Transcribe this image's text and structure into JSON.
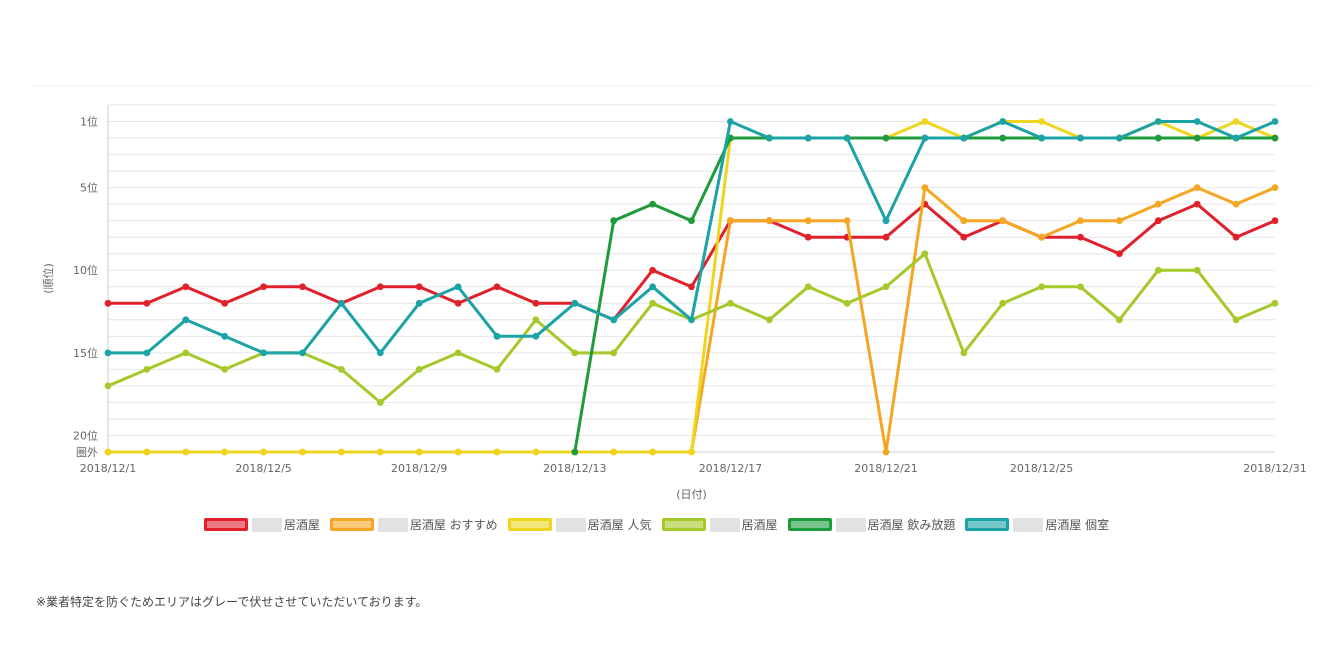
{
  "chart_data": {
    "type": "line",
    "x": [
      "2018/12/1",
      "2018/12/2",
      "2018/12/3",
      "2018/12/4",
      "2018/12/5",
      "2018/12/6",
      "2018/12/7",
      "2018/12/8",
      "2018/12/9",
      "2018/12/10",
      "2018/12/11",
      "2018/12/12",
      "2018/12/13",
      "2018/12/14",
      "2018/12/15",
      "2018/12/16",
      "2018/12/17",
      "2018/12/18",
      "2018/12/19",
      "2018/12/20",
      "2018/12/21",
      "2018/12/22",
      "2018/12/23",
      "2018/12/24",
      "2018/12/25",
      "2018/12/26",
      "2018/12/27",
      "2018/12/28",
      "2018/12/29",
      "2018/12/30",
      "2018/12/31"
    ],
    "x_tick_labels": [
      "2018/12/1",
      "2018/12/5",
      "2018/12/9",
      "2018/12/13",
      "2018/12/17",
      "2018/12/21",
      "2018/12/25",
      "2018/12/31"
    ],
    "y_tick_labels": [
      {
        "value": 1,
        "label": "1位"
      },
      {
        "value": 5,
        "label": "5位"
      },
      {
        "value": 10,
        "label": "10位"
      },
      {
        "value": 15,
        "label": "15位"
      },
      {
        "value": 20,
        "label": "20位"
      },
      {
        "value": 21,
        "label": "圏外"
      }
    ],
    "ylim": [
      21,
      0
    ],
    "ylabel": "(順位)",
    "xlabel": "(日付)",
    "grid": true,
    "legend_position": "bottom",
    "series": [
      {
        "name": "居酒屋",
        "color": "#e0212b",
        "values": [
          12,
          12,
          11,
          12,
          11,
          11,
          12,
          11,
          11,
          12,
          11,
          12,
          12,
          13,
          10,
          11,
          7,
          7,
          8,
          8,
          8,
          6,
          8,
          7,
          8,
          8,
          9,
          7,
          6,
          8,
          7
        ]
      },
      {
        "name": "居酒屋 おすすめ",
        "color": "#f5a623",
        "values": [
          21,
          21,
          21,
          21,
          21,
          21,
          21,
          21,
          21,
          21,
          21,
          21,
          21,
          21,
          21,
          21,
          7,
          7,
          7,
          7,
          21,
          5,
          7,
          7,
          8,
          7,
          7,
          6,
          5,
          6,
          5
        ]
      },
      {
        "name": "居酒屋 人気",
        "color": "#eed51f",
        "values": [
          21,
          21,
          21,
          21,
          21,
          21,
          21,
          21,
          21,
          21,
          21,
          21,
          21,
          21,
          21,
          21,
          2,
          2,
          2,
          2,
          2,
          1,
          2,
          1,
          1,
          2,
          2,
          1,
          2,
          1,
          2
        ]
      },
      {
        "name": "居酒屋",
        "color": "#a5c82a",
        "values": [
          17,
          16,
          15,
          16,
          15,
          15,
          16,
          18,
          16,
          15,
          16,
          13,
          15,
          15,
          12,
          13,
          12,
          13,
          11,
          12,
          11,
          9,
          15,
          12,
          11,
          11,
          13,
          10,
          10,
          13,
          12
        ]
      },
      {
        "name": "居酒屋 飲み放題",
        "color": "#1e9b3a",
        "values": [
          null,
          null,
          null,
          null,
          null,
          null,
          null,
          null,
          null,
          null,
          null,
          null,
          21,
          7,
          6,
          7,
          2,
          2,
          2,
          2,
          2,
          2,
          2,
          2,
          2,
          2,
          2,
          2,
          2,
          2,
          2
        ]
      },
      {
        "name": "居酒屋 個室",
        "color": "#1ba3a6",
        "values": [
          15,
          15,
          13,
          14,
          15,
          15,
          12,
          15,
          12,
          11,
          14,
          14,
          12,
          13,
          11,
          13,
          1,
          2,
          2,
          2,
          7,
          2,
          2,
          1,
          2,
          2,
          2,
          1,
          1,
          2,
          1
        ]
      }
    ]
  },
  "note": "※業者特定を防ぐためエリアはグレーで伏せさせていただいております。"
}
